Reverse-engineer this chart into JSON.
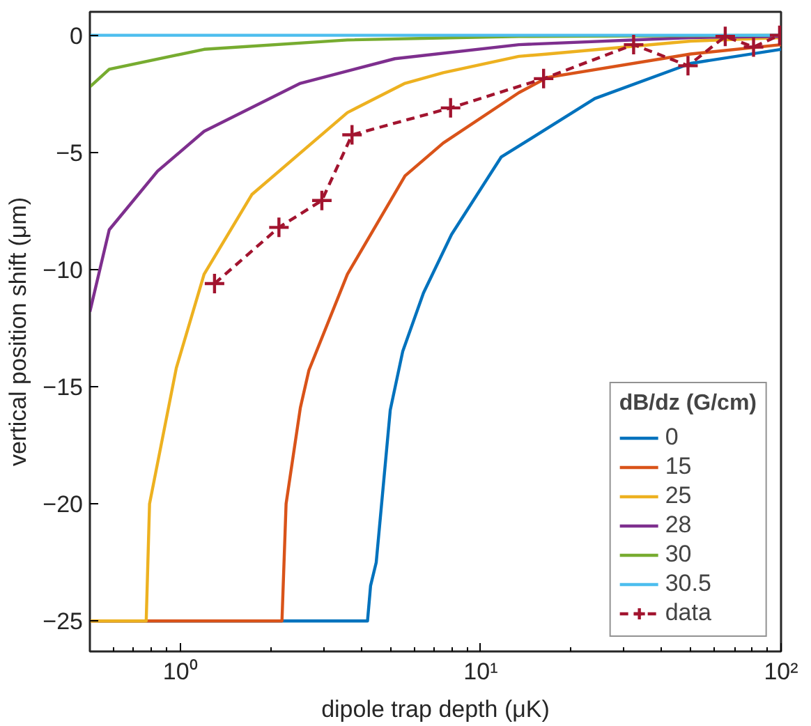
{
  "chart_data": {
    "type": "line",
    "xlabel": "dipole trap depth (μK)",
    "ylabel": "vertical position shift (μm)",
    "legend_title": "dB/dz (G/cm)",
    "legend": "bottom right",
    "grid": false,
    "log": "x",
    "xlim": [
      0.5,
      100
    ],
    "ylim": [
      -26.3,
      1
    ],
    "xticks": [
      {
        "value": 1,
        "label": "10⁰"
      },
      {
        "value": 10,
        "label": "10¹"
      },
      {
        "value": 100,
        "label": "10²"
      }
    ],
    "yticks": [
      -25,
      -20,
      -15,
      -10,
      -5,
      0
    ],
    "series": [
      {
        "name": "0",
        "color": "#0072bd",
        "x": [
          0.5,
          4.2,
          4.3,
          4.49,
          5.0,
          5.5,
          6.45,
          8.0,
          11.7,
          24,
          50,
          100
        ],
        "values": [
          -25,
          -25,
          -23.5,
          -22.5,
          -16,
          -13.5,
          -11.0,
          -8.5,
          -5.2,
          -2.7,
          -1.2,
          -0.6
        ]
      },
      {
        "name": "15",
        "color": "#d95319",
        "x": [
          0.5,
          2.18,
          2.25,
          2.51,
          2.68,
          3.6,
          5.6,
          7.5,
          13.4,
          16.7,
          50,
          100
        ],
        "values": [
          -25,
          -25,
          -20,
          -15.9,
          -14.3,
          -10.2,
          -6.0,
          -4.6,
          -2.45,
          -1.8,
          -0.8,
          -0.4
        ]
      },
      {
        "name": "25",
        "color": "#edb120",
        "x": [
          0.5,
          0.77,
          0.79,
          0.97,
          1.2,
          1.73,
          3.6,
          5.6,
          7.5,
          13.4,
          16.7,
          50,
          100
        ],
        "values": [
          -25,
          -25,
          -20,
          -14.2,
          -10.2,
          -6.8,
          -3.3,
          -2.05,
          -1.6,
          -0.9,
          -0.8,
          -0.25,
          -0.1
        ]
      },
      {
        "name": "28",
        "color": "#7e2f8e",
        "x": [
          0.5,
          0.58,
          0.84,
          1.2,
          2.51,
          5.18,
          13.4,
          50,
          100
        ],
        "values": [
          -11.8,
          -8.3,
          -5.8,
          -4.1,
          -2.05,
          -1.0,
          -0.4,
          -0.1,
          -0.05
        ]
      },
      {
        "name": "30",
        "color": "#77ac30",
        "x": [
          0.5,
          0.58,
          1.2,
          3.6,
          13.4,
          100
        ],
        "values": [
          -2.2,
          -1.45,
          -0.6,
          -0.2,
          -0.05,
          0
        ]
      },
      {
        "name": "30.5",
        "color": "#4dbeee",
        "x": [
          0.5,
          100
        ],
        "values": [
          0,
          0
        ]
      },
      {
        "name": "data",
        "color": "#a2142f",
        "marker": "cross",
        "line_style": "dashed",
        "x": [
          1.3,
          2.13,
          2.96,
          3.73,
          7.94,
          16.2,
          32.3,
          49,
          65.2,
          81,
          98.9
        ],
        "values": [
          -10.6,
          -8.2,
          -7.05,
          -4.25,
          -3.1,
          -1.85,
          -0.4,
          -1.3,
          -0.05,
          -0.5,
          0
        ]
      }
    ]
  }
}
